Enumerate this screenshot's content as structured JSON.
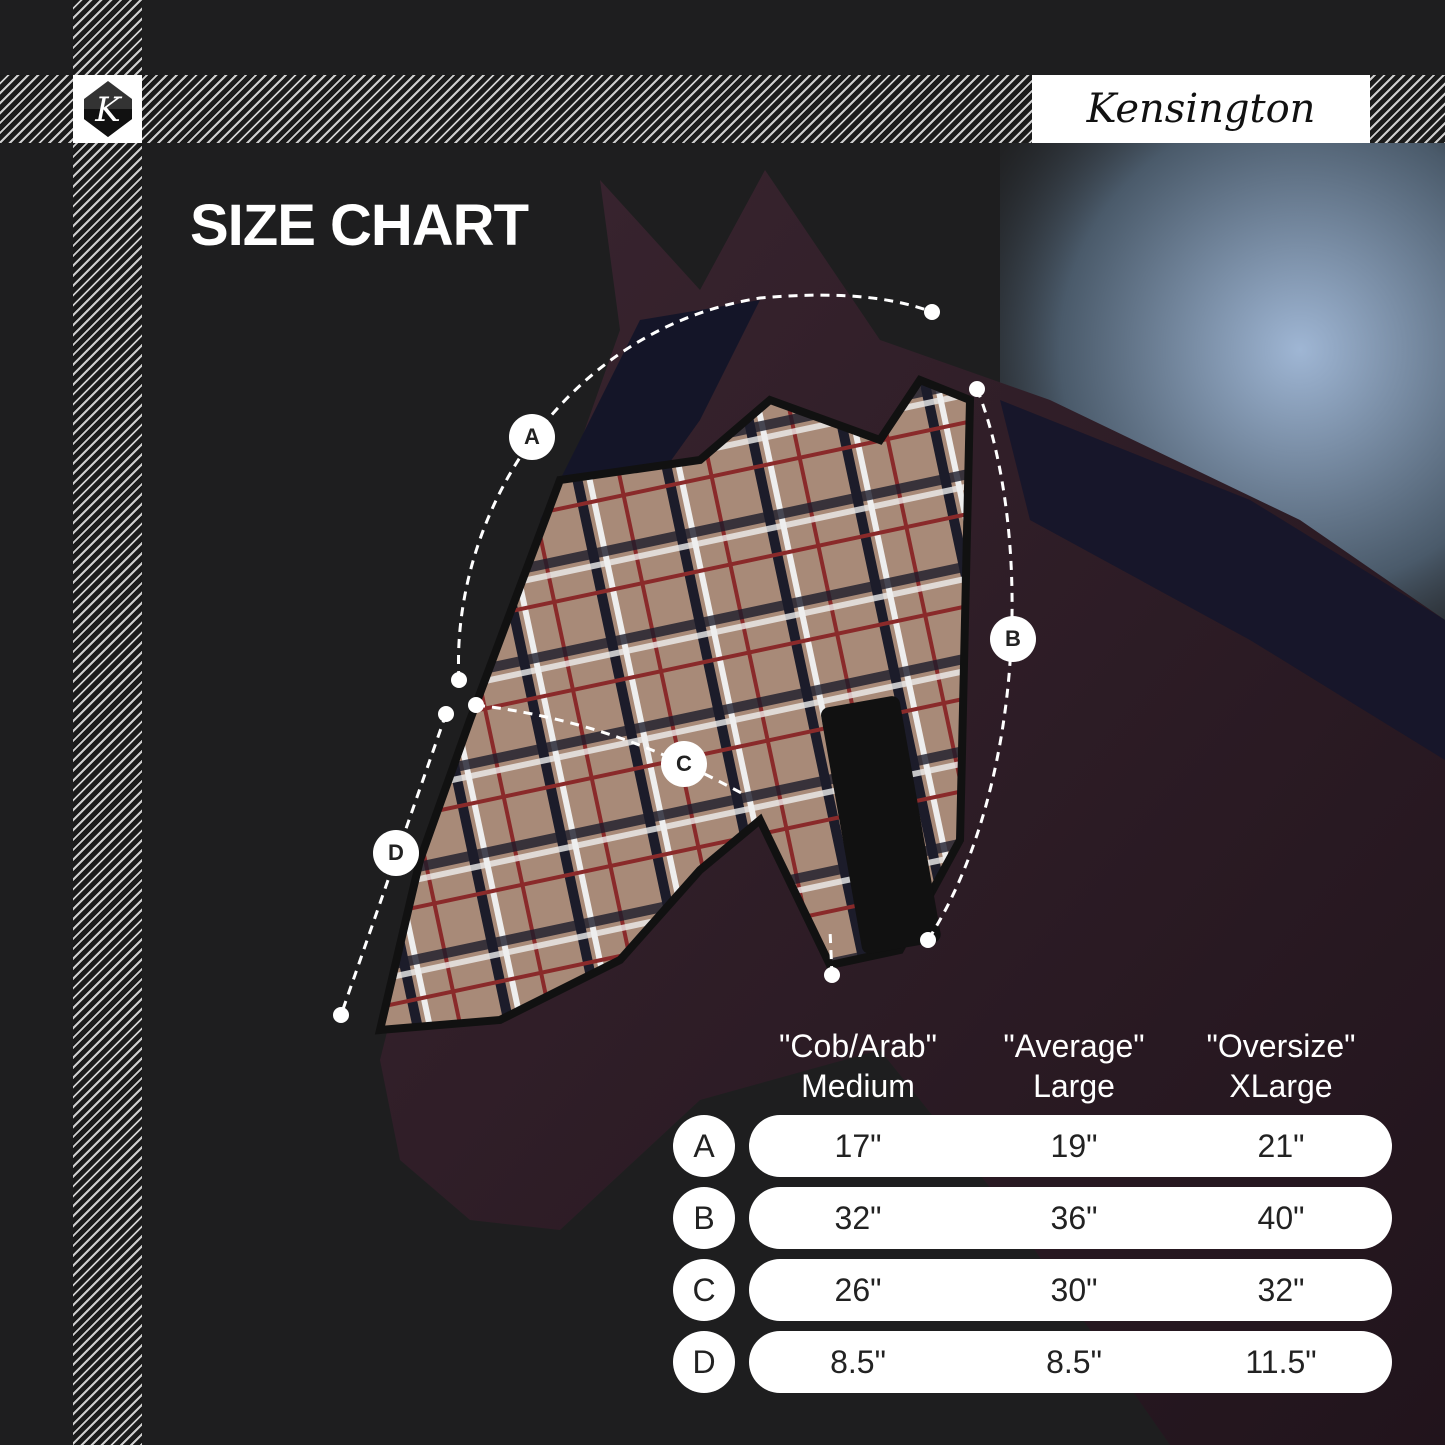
{
  "brand": {
    "name": "Kensington",
    "logo_letter": "K"
  },
  "title": "SIZE CHART",
  "colors": {
    "background": "#1e1e1f",
    "mask_plaid": "#a88a78",
    "horse": "#2a1a22",
    "pill": "#ffffff"
  },
  "markers": [
    "A",
    "B",
    "C",
    "D"
  ],
  "table": {
    "columns": [
      {
        "line1": "\"Cob/Arab\"",
        "line2": "Medium"
      },
      {
        "line1": "\"Average\"",
        "line2": "Large"
      },
      {
        "line1": "\"Oversize\"",
        "line2": "XLarge"
      }
    ],
    "rows": [
      {
        "label": "A",
        "values": [
          "17\"",
          "19\"",
          "21\""
        ]
      },
      {
        "label": "B",
        "values": [
          "32\"",
          "36\"",
          "40\""
        ]
      },
      {
        "label": "C",
        "values": [
          "26\"",
          "30\"",
          "32\""
        ]
      },
      {
        "label": "D",
        "values": [
          "8.5\"",
          "8.5\"",
          "11.5\""
        ]
      }
    ]
  }
}
